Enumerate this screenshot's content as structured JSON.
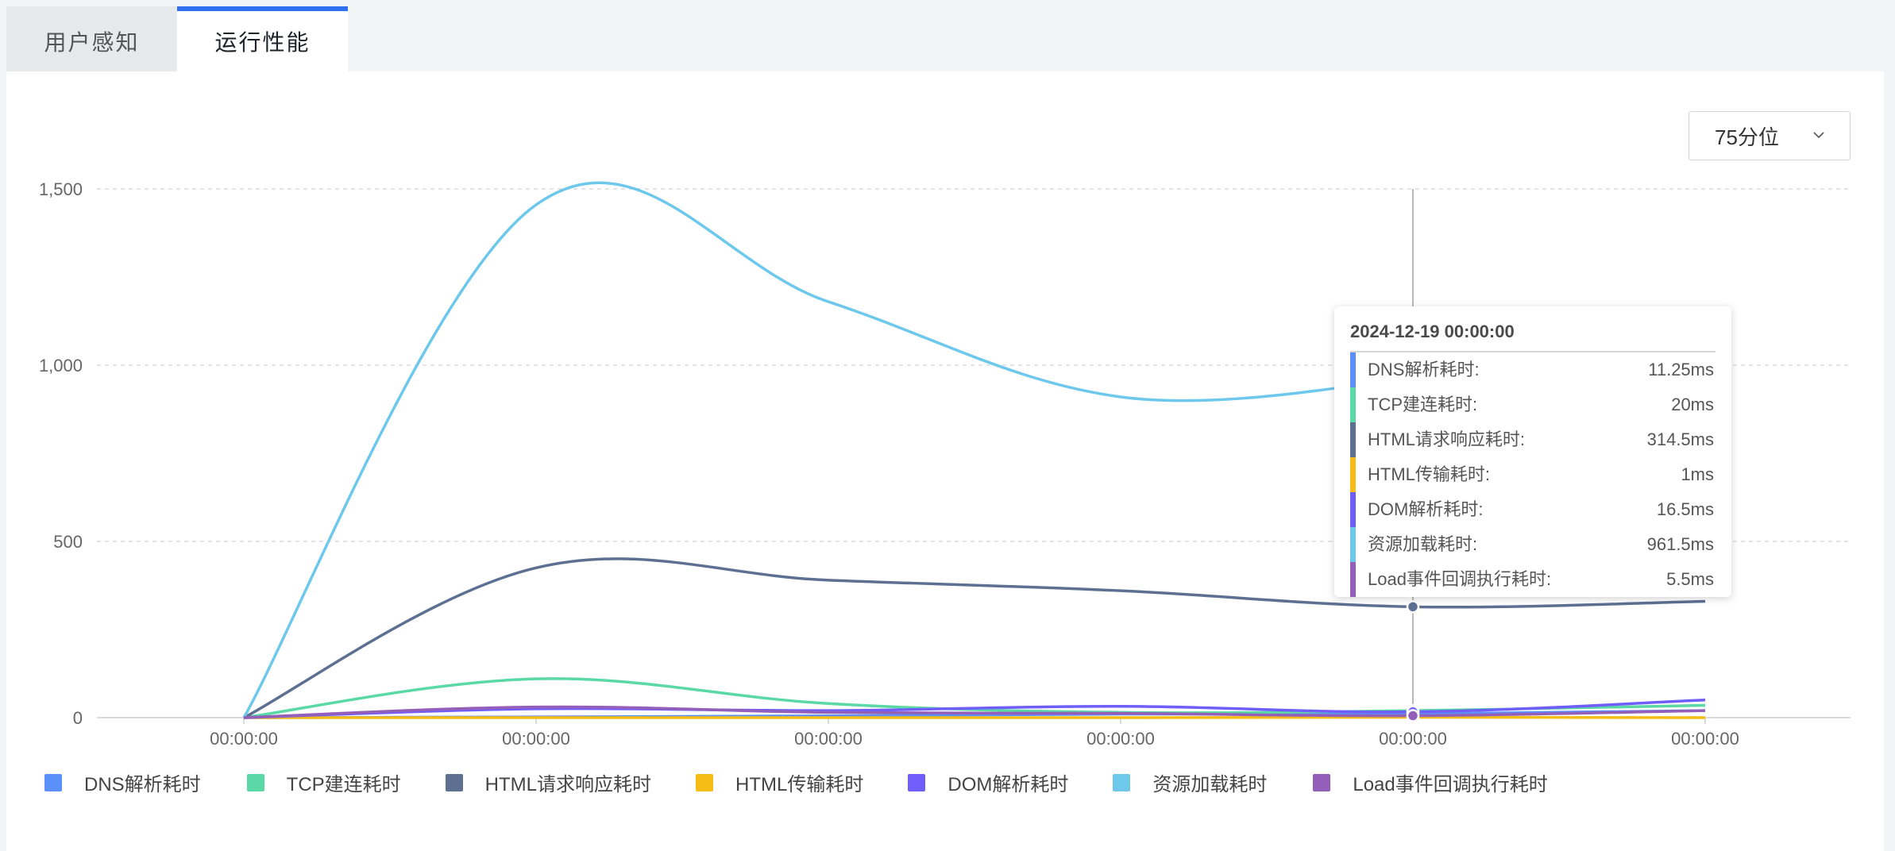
{
  "tabs": [
    {
      "label": "用户感知",
      "active": false
    },
    {
      "label": "运行性能",
      "active": true
    }
  ],
  "dropdown": {
    "selected": "75分位"
  },
  "tooltip": {
    "title": "2024-12-19 00:00:00",
    "rows": [
      {
        "label": "DNS解析耗时:",
        "value": "11.25ms",
        "color": "#5b8ff9"
      },
      {
        "label": "TCP建连耗时:",
        "value": "20ms",
        "color": "#5ad8a6"
      },
      {
        "label": "HTML请求响应耗时:",
        "value": "314.5ms",
        "color": "#5d7092"
      },
      {
        "label": "HTML传输耗时:",
        "value": "1ms",
        "color": "#f6bd16"
      },
      {
        "label": "DOM解析耗时:",
        "value": "16.5ms",
        "color": "#6f5ef9"
      },
      {
        "label": "资源加载耗时:",
        "value": "961.5ms",
        "color": "#6dc8ec"
      },
      {
        "label": "Load事件回调执行耗时:",
        "value": "5.5ms",
        "color": "#945fb9"
      }
    ]
  },
  "chart_data": {
    "type": "line",
    "x": [
      "00:00:00",
      "00:00:00",
      "00:00:00",
      "00:00:00",
      "00:00:00",
      "00:00:00"
    ],
    "y_ticks": [
      "0",
      "500",
      "1,000",
      "1,500"
    ],
    "ylim": [
      0,
      1500
    ],
    "grid": true,
    "legend_position": "bottom",
    "series": [
      {
        "name": "DNS解析耗时",
        "color": "#5b8ff9",
        "values": [
          0,
          2,
          5,
          10,
          11.25,
          20
        ]
      },
      {
        "name": "TCP建连耗时",
        "color": "#5ad8a6",
        "values": [
          0,
          110,
          40,
          15,
          20,
          35
        ]
      },
      {
        "name": "HTML请求响应耗时",
        "color": "#5d7092",
        "values": [
          0,
          425,
          390,
          360,
          314.5,
          330
        ]
      },
      {
        "name": "HTML传输耗时",
        "color": "#f6bd16",
        "values": [
          0,
          0,
          0,
          0,
          1,
          0
        ]
      },
      {
        "name": "DOM解析耗时",
        "color": "#6f5ef9",
        "values": [
          0,
          25,
          20,
          32,
          16.5,
          50
        ]
      },
      {
        "name": "资源加载耗时",
        "color": "#6dc8ec",
        "values": [
          0,
          1455,
          1180,
          910,
          961.5,
          null
        ]
      },
      {
        "name": "Load事件回调执行耗时",
        "color": "#945fb9",
        "values": [
          0,
          30,
          15,
          12,
          5.5,
          20
        ]
      }
    ],
    "hover_index": 4
  }
}
